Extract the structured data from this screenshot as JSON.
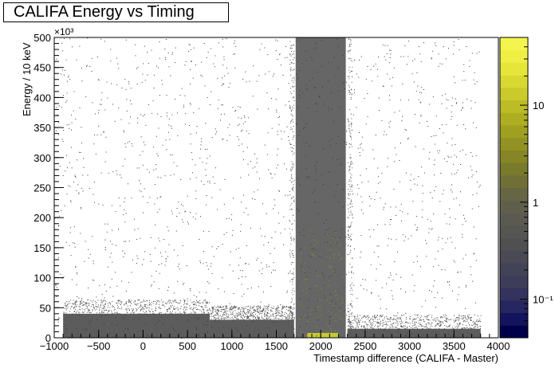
{
  "chart_data": {
    "type": "heatmap",
    "title": "CALIFA Energy vs Timing",
    "xlabel": "Timestamp difference (CALIFA - Master)",
    "ylabel": "Energy / 10 keV",
    "y_multiplier_label": "×10³",
    "xlim": [
      -1000,
      4000
    ],
    "ylim": [
      0,
      500
    ],
    "x_ticks": [
      -1000,
      -500,
      0,
      500,
      1000,
      1500,
      2000,
      2500,
      3000,
      3500,
      4000
    ],
    "x_tick_labels": [
      "−1000",
      "−500",
      "0",
      "500",
      "1000",
      "1500",
      "2000",
      "2500",
      "3000",
      "3500",
      "4000"
    ],
    "y_ticks": [
      0,
      50,
      100,
      150,
      200,
      250,
      300,
      350,
      400,
      450,
      500
    ],
    "y_tick_labels": [
      "0",
      "50",
      "100",
      "150",
      "200",
      "250",
      "300",
      "350",
      "400",
      "450",
      "500"
    ],
    "z_scale": "log",
    "z_range": [
      0.04,
      50
    ],
    "colorbar_tick_labels": [
      "10",
      "1",
      "10⁻¹"
    ],
    "colorbar_tick_values": [
      10,
      1,
      0.1
    ],
    "palette": [
      "#00004a",
      "#14145e",
      "#262660",
      "#33335e",
      "#3d3d5a",
      "#434358",
      "#4a4a55",
      "#505052",
      "#555551",
      "#5a5a50",
      "#5f5f4c",
      "#666644",
      "#707036",
      "#7a7a2c",
      "#868626",
      "#929224",
      "#a0a020",
      "#aeae22",
      "#bcbc26",
      "#caca2c",
      "#d8d832",
      "#e6e63a",
      "#eeee44",
      "#f4f44e"
    ],
    "density_regions": [
      {
        "x": [
          1700,
          2300
        ],
        "y": [
          0,
          500
        ],
        "density": "high",
        "note": "main coincidence peak"
      },
      {
        "x": [
          -900,
          750
        ],
        "y": [
          0,
          40
        ],
        "density": "medium",
        "note": "low-energy band"
      },
      {
        "x": [
          750,
          1700
        ],
        "y": [
          0,
          30
        ],
        "density": "medium",
        "note": "low-energy band"
      },
      {
        "x": [
          2300,
          3800
        ],
        "y": [
          0,
          15
        ],
        "density": "medium",
        "note": "low-energy band"
      },
      {
        "x": [
          1850,
          2200
        ],
        "y": [
          0,
          8
        ],
        "density": "very_high",
        "note": "yellow hot spot"
      },
      {
        "x": [
          -1000,
          3800
        ],
        "y": [
          0,
          500
        ],
        "density": "sparse",
        "note": "random background"
      }
    ]
  }
}
